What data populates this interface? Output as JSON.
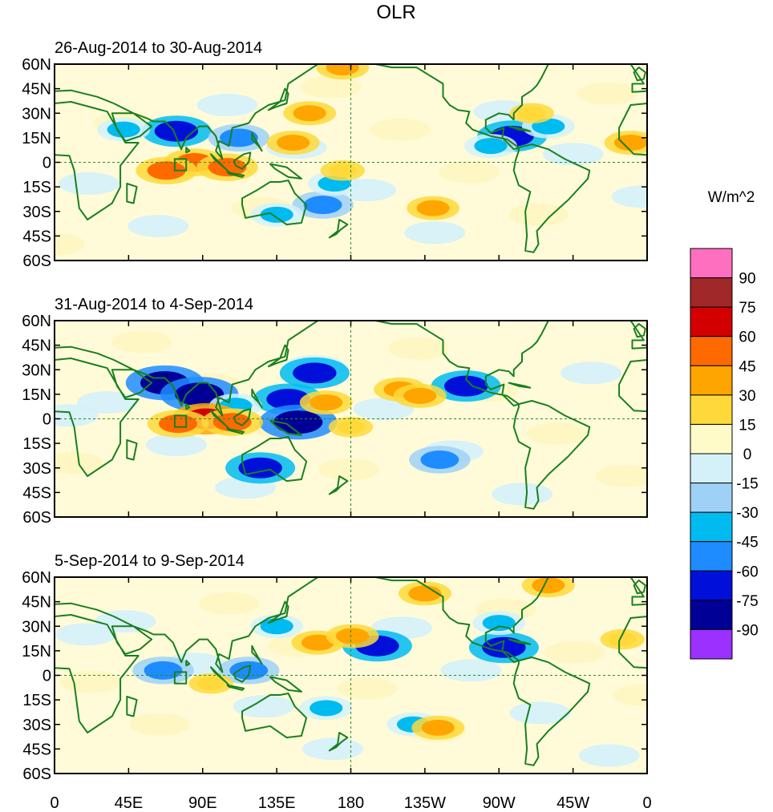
{
  "title": "OLR",
  "colorbar": {
    "units": "W/m^2",
    "levels": [
      "90",
      "75",
      "60",
      "45",
      "30",
      "15",
      "0",
      "-15",
      "-30",
      "-45",
      "-60",
      "-75",
      "-90"
    ],
    "colors": [
      "#ff6fc0",
      "#a02828",
      "#d40000",
      "#ff6a00",
      "#ffa500",
      "#ffd93a",
      "#fffbc8",
      "#d4f1fa",
      "#9fd1f7",
      "#00bbf0",
      "#1e8cff",
      "#0010d8",
      "#000096",
      "#9b30ff"
    ]
  },
  "axes": {
    "x_ticks": [
      "0",
      "45E",
      "90E",
      "135E",
      "180",
      "135W",
      "90W",
      "45W",
      "0"
    ],
    "y_ticks": [
      "60N",
      "45N",
      "30N",
      "15N",
      "0",
      "15S",
      "30S",
      "45S",
      "60S"
    ]
  },
  "colors": {
    "coast": "#18801e",
    "box": "#18801e",
    "guide": "#2a8a2a"
  },
  "chart_data": [
    {
      "type": "heatmap",
      "title": "26-Aug-2014 to 30-Aug-2014",
      "variable": "OLR anomaly",
      "units": "W/m^2",
      "xlim": [
        0,
        360
      ],
      "ylim": [
        -60,
        60
      ],
      "anomalies": [
        {
          "lon": 74,
          "lat": 19,
          "value": -60
        },
        {
          "lon": 278,
          "lat": 16,
          "value": -60
        },
        {
          "lon": 112,
          "lat": 15,
          "value": -45
        },
        {
          "lon": 163,
          "lat": -26,
          "value": -45
        },
        {
          "lon": 170,
          "lat": -13,
          "value": -30
        },
        {
          "lon": 135,
          "lat": -32,
          "value": -30
        },
        {
          "lon": 42,
          "lat": 20,
          "value": -30
        },
        {
          "lon": 265,
          "lat": 10,
          "value": -30
        },
        {
          "lon": 300,
          "lat": 22,
          "value": -30
        },
        {
          "lon": 155,
          "lat": 30,
          "value": 30
        },
        {
          "lon": 85,
          "lat": 0,
          "value": 45
        },
        {
          "lon": 68,
          "lat": -5,
          "value": 45
        },
        {
          "lon": 105,
          "lat": -3,
          "value": 45
        },
        {
          "lon": 145,
          "lat": 12,
          "value": 30
        },
        {
          "lon": 175,
          "lat": -5,
          "value": 15
        },
        {
          "lon": 230,
          "lat": -28,
          "value": 30
        },
        {
          "lon": 175,
          "lat": 58,
          "value": 30
        },
        {
          "lon": 290,
          "lat": 30,
          "value": 15
        },
        {
          "lon": 350,
          "lat": 12,
          "value": 30
        }
      ]
    },
    {
      "type": "heatmap",
      "title": "31-Aug-2014 to 4-Sep-2014",
      "variable": "OLR anomaly",
      "units": "W/m^2",
      "xlim": [
        0,
        360
      ],
      "ylim": [
        -60,
        60
      ],
      "anomalies": [
        {
          "lon": 67,
          "lat": 22,
          "value": -75
        },
        {
          "lon": 88,
          "lat": 15,
          "value": -75
        },
        {
          "lon": 142,
          "lat": 12,
          "value": -60
        },
        {
          "lon": 148,
          "lat": -2,
          "value": -75
        },
        {
          "lon": 158,
          "lat": 28,
          "value": -60
        },
        {
          "lon": 125,
          "lat": -30,
          "value": -60
        },
        {
          "lon": 250,
          "lat": 20,
          "value": -60
        },
        {
          "lon": 234,
          "lat": -25,
          "value": -45
        },
        {
          "lon": 110,
          "lat": 8,
          "value": -30
        },
        {
          "lon": 92,
          "lat": 0,
          "value": 60
        },
        {
          "lon": 75,
          "lat": -3,
          "value": 45
        },
        {
          "lon": 108,
          "lat": -2,
          "value": 45
        },
        {
          "lon": 165,
          "lat": 10,
          "value": 30
        },
        {
          "lon": 210,
          "lat": 18,
          "value": 30
        },
        {
          "lon": 222,
          "lat": 14,
          "value": 30
        },
        {
          "lon": 180,
          "lat": -5,
          "value": 15
        }
      ]
    },
    {
      "type": "heatmap",
      "title": "5-Sep-2014 to 9-Sep-2014",
      "variable": "OLR anomaly",
      "units": "W/m^2",
      "xlim": [
        0,
        360
      ],
      "ylim": [
        -60,
        60
      ],
      "anomalies": [
        {
          "lon": 196,
          "lat": 18,
          "value": -60
        },
        {
          "lon": 273,
          "lat": 17,
          "value": -60
        },
        {
          "lon": 66,
          "lat": 3,
          "value": -45
        },
        {
          "lon": 118,
          "lat": 3,
          "value": -45
        },
        {
          "lon": 135,
          "lat": 30,
          "value": -30
        },
        {
          "lon": 270,
          "lat": 32,
          "value": -30
        },
        {
          "lon": 165,
          "lat": -20,
          "value": -30
        },
        {
          "lon": 218,
          "lat": -30,
          "value": -30
        },
        {
          "lon": 160,
          "lat": 20,
          "value": 30
        },
        {
          "lon": 181,
          "lat": 24,
          "value": 30
        },
        {
          "lon": 233,
          "lat": -32,
          "value": 30
        },
        {
          "lon": 95,
          "lat": -5,
          "value": 15
        },
        {
          "lon": 225,
          "lat": 50,
          "value": 30
        },
        {
          "lon": 300,
          "lat": 55,
          "value": 30
        },
        {
          "lon": 345,
          "lat": 22,
          "value": 15
        }
      ]
    }
  ]
}
